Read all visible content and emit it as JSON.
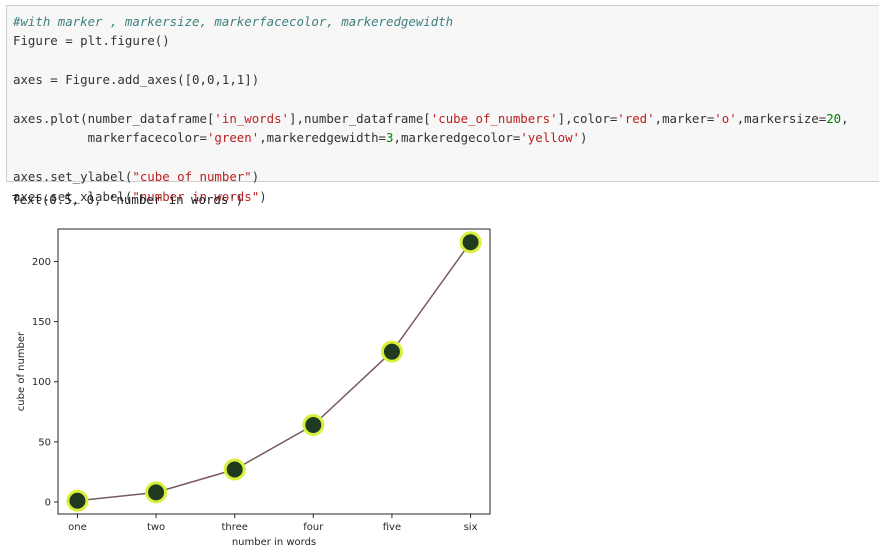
{
  "code_cell": {
    "lines": [
      "#with marker , markersize, markerfacecolor, markeredgewidth",
      "Figure = plt.figure()",
      "",
      "axes = Figure.add_axes([0,0,1,1])",
      "",
      "axes.plot(number_dataframe['in_words'],number_dataframe['cube_of_numbers'],color='red',marker='o',markersize=20,",
      "          markerfacecolor='green',markeredgewidth=3,markeredgecolor='yellow')",
      "",
      "axes.set_ylabel(\"cube of number\")",
      "axes.set_xlabel(\"number in words\")"
    ]
  },
  "output": {
    "text": "Text(0.5, 0, 'number in words')"
  },
  "chart_data": {
    "type": "line",
    "categories": [
      "one",
      "two",
      "three",
      "four",
      "five",
      "six"
    ],
    "values": [
      1,
      8,
      27,
      64,
      125,
      216
    ],
    "title": "",
    "xlabel": "number in words",
    "ylabel": "cube of number",
    "ylim": [
      -10,
      227
    ],
    "yticks": [
      0,
      50,
      100,
      150,
      200
    ],
    "grid": false,
    "line_color": "#7a5a5a",
    "marker_face_color": "#1f3a1f",
    "marker_edge_color": "#d9f03a"
  }
}
